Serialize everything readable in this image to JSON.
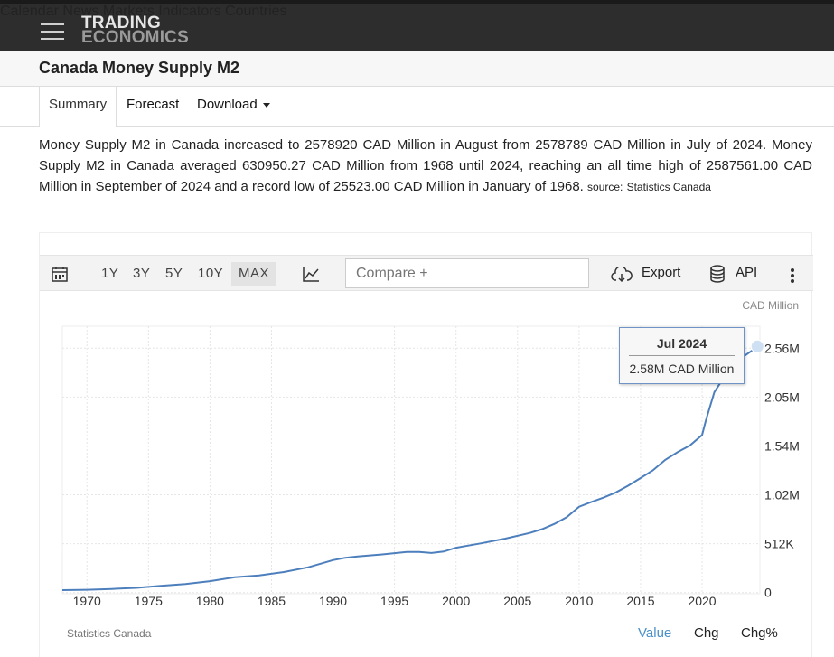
{
  "header": {
    "logo_line1": "TRADING",
    "logo_line2": "ECONOMICS",
    "nav": [
      "Calendar",
      "News",
      "Markets",
      "Indicators",
      "Countries"
    ]
  },
  "page_title": "Canada Money Supply M2",
  "tabs": [
    {
      "label": "Summary",
      "active": true
    },
    {
      "label": "Forecast",
      "active": false
    },
    {
      "label": "Download",
      "active": false
    }
  ],
  "description": {
    "text": "Money Supply M2 in Canada increased to 2578920 CAD Million in August from 2578789 CAD Million in July of 2024. Money Supply M2 in Canada averaged 630950.27 CAD Million from 1968 until 2024, reaching an all time high of 2587561.00 CAD Million in September of 2024 and a record low of 25523.00 CAD Million in January of 1968.",
    "source_label": "source:",
    "source_name": "Statistics Canada"
  },
  "toolbar": {
    "ranges": [
      "1Y",
      "3Y",
      "5Y",
      "10Y",
      "MAX"
    ],
    "selected_range": "MAX",
    "compare_placeholder": "Compare +",
    "export_label": "Export",
    "api_label": "API",
    "icons": [
      "calendar-icon",
      "line-chart-icon",
      "cloud-download-icon",
      "database-icon",
      "more-vertical-icon"
    ]
  },
  "chart_data": {
    "type": "line",
    "unit_label": "CAD Million",
    "x_ticks": [
      1970,
      1975,
      1980,
      1985,
      1990,
      1995,
      2000,
      2005,
      2010,
      2015,
      2020
    ],
    "y_ticks": [
      0,
      512000,
      1024000,
      1536000,
      2048000,
      2560000
    ],
    "y_tick_labels": [
      "0",
      "512K",
      "1.02M",
      "1.54M",
      "2.05M",
      "2.56M"
    ],
    "xlim": [
      1968,
      2024.7
    ],
    "ylim": [
      -12000,
      2790000
    ],
    "line_color": "#4d7fbd",
    "series": [
      {
        "points": [
          [
            1968.0,
            25523
          ],
          [
            1970,
            30000
          ],
          [
            1972,
            38000
          ],
          [
            1974,
            50000
          ],
          [
            1976,
            70000
          ],
          [
            1978,
            90000
          ],
          [
            1980,
            120000
          ],
          [
            1982,
            160000
          ],
          [
            1984,
            180000
          ],
          [
            1986,
            215000
          ],
          [
            1988,
            265000
          ],
          [
            1990,
            340000
          ],
          [
            1991,
            365000
          ],
          [
            1992,
            378000
          ],
          [
            1994,
            400000
          ],
          [
            1996,
            425000
          ],
          [
            1997,
            425000
          ],
          [
            1998,
            415000
          ],
          [
            1999,
            430000
          ],
          [
            2000,
            470000
          ],
          [
            2002,
            515000
          ],
          [
            2004,
            565000
          ],
          [
            2006,
            625000
          ],
          [
            2007,
            665000
          ],
          [
            2008,
            720000
          ],
          [
            2009,
            790000
          ],
          [
            2010,
            900000
          ],
          [
            2011,
            950000
          ],
          [
            2012,
            995000
          ],
          [
            2013,
            1050000
          ],
          [
            2014,
            1120000
          ],
          [
            2015,
            1200000
          ],
          [
            2016,
            1280000
          ],
          [
            2017,
            1390000
          ],
          [
            2018,
            1470000
          ],
          [
            2019,
            1540000
          ],
          [
            2020.0,
            1650000
          ],
          [
            2020.3,
            1800000
          ],
          [
            2021,
            2100000
          ],
          [
            2022,
            2300000
          ],
          [
            2023,
            2440000
          ],
          [
            2024.0,
            2530000
          ],
          [
            2024.5,
            2578789
          ],
          [
            2024.6,
            2578920
          ]
        ]
      }
    ],
    "tooltip": {
      "date": "Jul 2024",
      "value": "2.58M CAD Million"
    },
    "source": "Statistics Canada"
  },
  "view_tabs": [
    {
      "label": "Value",
      "active": true
    },
    {
      "label": "Chg",
      "active": false
    },
    {
      "label": "Chg%",
      "active": false
    }
  ]
}
